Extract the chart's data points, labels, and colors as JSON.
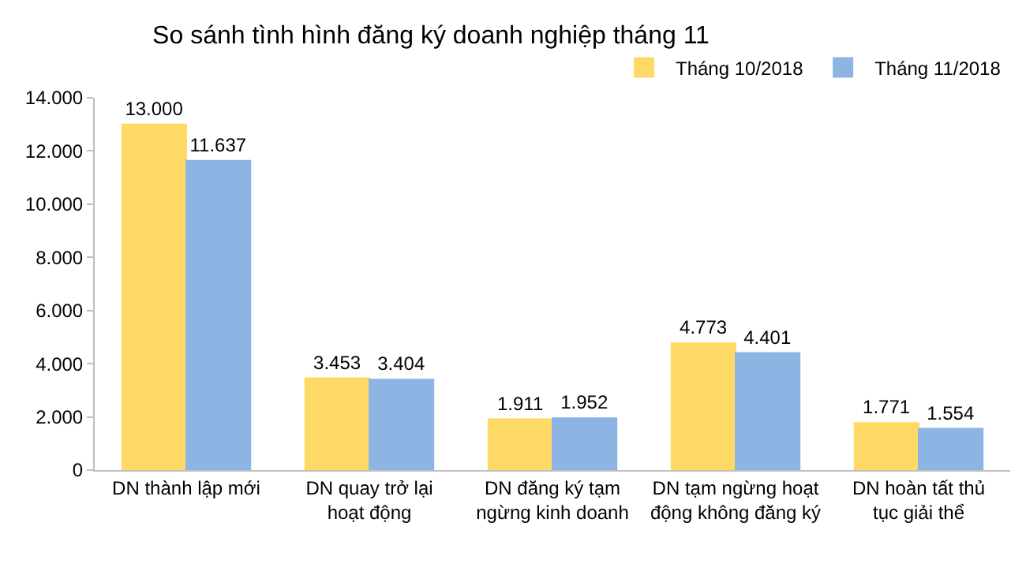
{
  "chart_data": {
    "type": "bar",
    "title": "So sánh tình hình đăng ký doanh nghiệp tháng 11",
    "categories": [
      "DN thành lập mới",
      "DN quay trở lại hoạt động",
      "DN đăng ký tạm ngừng kinh doanh",
      "DN tạm ngừng hoạt động không đăng ký",
      "DN hoàn tất thủ tục giải thể"
    ],
    "series": [
      {
        "name": "Tháng 10/2018",
        "color": "#ffd966",
        "values": [
          13000,
          3453,
          1911,
          4773,
          1771
        ],
        "value_labels": [
          "13.000",
          "3.453",
          "1.911",
          "4.773",
          "1.771"
        ]
      },
      {
        "name": "Tháng 11/2018",
        "color": "#8eb4e3",
        "values": [
          11637,
          3404,
          1952,
          4401,
          1554
        ],
        "value_labels": [
          "11.637",
          "3.404",
          "1.952",
          "4.401",
          "1.554"
        ]
      }
    ],
    "ylim": [
      0,
      14000
    ],
    "yticks": [
      {
        "value": 0,
        "label": "0"
      },
      {
        "value": 2000,
        "label": "2.000"
      },
      {
        "value": 4000,
        "label": "4.000"
      },
      {
        "value": 6000,
        "label": "6.000"
      },
      {
        "value": 8000,
        "label": "8.000"
      },
      {
        "value": 10000,
        "label": "10.000"
      },
      {
        "value": 12000,
        "label": "12.000"
      },
      {
        "value": 14000,
        "label": "14.000"
      }
    ],
    "grid": false,
    "legend": "top right"
  }
}
